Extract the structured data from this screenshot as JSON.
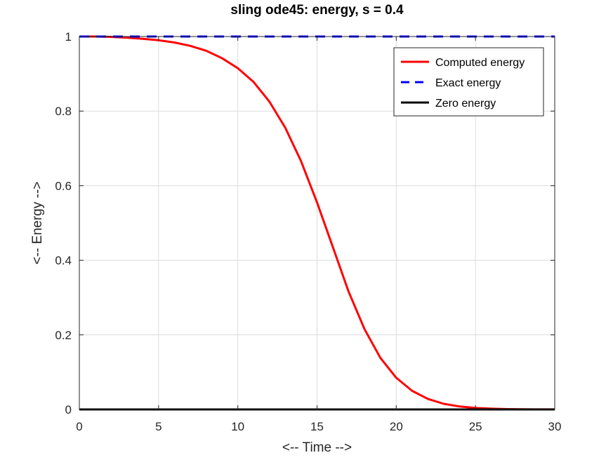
{
  "chart_data": {
    "type": "line",
    "title": "sling ode45: energy, s = 0.4",
    "xlabel": "<-- Time -->",
    "ylabel": "<-- Energy -->",
    "xlim": [
      0,
      30
    ],
    "ylim": [
      0,
      1
    ],
    "xticks": [
      0,
      5,
      10,
      15,
      20,
      25,
      30
    ],
    "yticks": [
      0,
      0.2,
      0.4,
      0.6,
      0.8,
      1
    ],
    "xtick_labels": [
      "0",
      "5",
      "10",
      "15",
      "20",
      "25",
      "30"
    ],
    "ytick_labels": [
      "0",
      "0.2",
      "0.4",
      "0.6",
      "0.8",
      "1"
    ],
    "grid": true,
    "legend_position": "top-right",
    "series": [
      {
        "name": "Computed energy",
        "color": "#ff0000",
        "style": "solid",
        "x": [
          0,
          1,
          2,
          3,
          4,
          5,
          6,
          7,
          8,
          9,
          10,
          11,
          12,
          13,
          14,
          15,
          16,
          17,
          18,
          19,
          20,
          21,
          22,
          23,
          24,
          25,
          26,
          27,
          28,
          29,
          30
        ],
        "y": [
          1.0,
          1.0,
          0.999,
          0.997,
          0.994,
          0.99,
          0.984,
          0.975,
          0.962,
          0.942,
          0.915,
          0.878,
          0.825,
          0.755,
          0.665,
          0.555,
          0.435,
          0.315,
          0.215,
          0.138,
          0.085,
          0.05,
          0.028,
          0.015,
          0.008,
          0.004,
          0.002,
          0.001,
          0.0005,
          0.0002,
          0.0001
        ]
      },
      {
        "name": "Exact energy",
        "color": "#0000ff",
        "style": "dashed",
        "x": [
          0,
          30
        ],
        "y": [
          1,
          1
        ]
      },
      {
        "name": "Zero energy",
        "color": "#000000",
        "style": "solid",
        "x": [
          0,
          30
        ],
        "y": [
          0,
          0
        ]
      }
    ]
  }
}
